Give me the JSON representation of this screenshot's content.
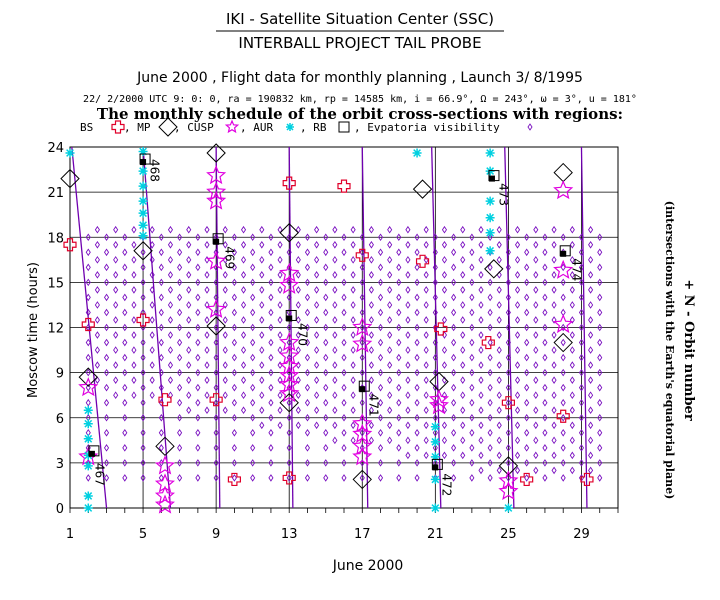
{
  "header": {
    "line1": "IKI - Satellite Situation Center (SSC)",
    "line2": "INTERBALL PROJECT TAIL PROBE",
    "line3": "June 2000 ,  Flight data for monthly planning ,   Launch  3/ 8/1995",
    "line4": "22/ 2/2000 UTC  9: 0: 0, ra = 190832 km, rp =  14585 km, i = 66.9°, Ω = 243°, ω =   3°, u = 181°",
    "line5": "The monthly schedule of the orbit cross-sections with regions:"
  },
  "legend": {
    "bs": "BS",
    "mp": ", MP",
    "cusp": ", CUSP",
    "aur": ", AUR",
    "rb": ", RB",
    "evp": ", Evpatoria visibility"
  },
  "colors": {
    "bs": "#e0002a",
    "mp": "#000000",
    "cusp": "#e000e0",
    "aur": "#00d0e0",
    "rb": "#000000",
    "evp": "#7a10c0",
    "orbit_line": "#7000b0"
  },
  "chart_data": {
    "type": "scatter",
    "xlabel": "June 2000",
    "ylabel": "Moscow time (hours)",
    "right_label_1": "+ N - Orbit number",
    "right_label_2": "(intersections with the Earth's equatorial plane)",
    "xlim": [
      1,
      31
    ],
    "ylim": [
      0,
      24
    ],
    "x_ticks": [
      1,
      5,
      9,
      13,
      17,
      21,
      25,
      29
    ],
    "y_ticks": [
      0,
      3,
      6,
      9,
      12,
      15,
      18,
      21,
      24
    ],
    "grid": true,
    "orbit_lines": [
      {
        "x0": 1.1,
        "y0": 24,
        "x1": 3.0,
        "y1": 0
      },
      {
        "x0": 5.0,
        "y0": 24,
        "x1": 6.5,
        "y1": 0
      },
      {
        "x0": 9.0,
        "y0": 24,
        "x1": 9.2,
        "y1": 0
      },
      {
        "x0": 13.0,
        "y0": 24,
        "x1": 13.2,
        "y1": 0
      },
      {
        "x0": 17.0,
        "y0": 24,
        "x1": 17.3,
        "y1": 0
      },
      {
        "x0": 20.8,
        "y0": 24,
        "x1": 21.3,
        "y1": 0
      },
      {
        "x0": 24.8,
        "y0": 24,
        "x1": 25.3,
        "y1": 0
      },
      {
        "x0": 29.0,
        "y0": 24,
        "x1": 29.3,
        "y1": 0
      }
    ],
    "orbit_numbers": [
      {
        "label": "467",
        "x": 2.4,
        "y": 3.0
      },
      {
        "label": "468",
        "x": 5.4,
        "y": 23.2
      },
      {
        "label": "469",
        "x": 9.5,
        "y": 17.4
      },
      {
        "label": "470",
        "x": 13.5,
        "y": 12.3
      },
      {
        "label": "471",
        "x": 17.4,
        "y": 7.6
      },
      {
        "label": "472",
        "x": 21.4,
        "y": 2.3
      },
      {
        "label": "473",
        "x": 24.5,
        "y": 21.6
      },
      {
        "label": "474",
        "x": 28.5,
        "y": 16.6
      }
    ],
    "orbit_points": [
      {
        "x": 2.2,
        "y": 3.6
      },
      {
        "x": 5.0,
        "y": 23.0
      },
      {
        "x": 9.0,
        "y": 17.7
      },
      {
        "x": 13.0,
        "y": 12.6
      },
      {
        "x": 17.0,
        "y": 7.9
      },
      {
        "x": 21.0,
        "y": 2.7
      },
      {
        "x": 24.1,
        "y": 21.9
      },
      {
        "x": 28.0,
        "y": 16.9
      }
    ],
    "bs": [
      {
        "x": 1.0,
        "y": 17.5
      },
      {
        "x": 2.0,
        "y": 12.2
      },
      {
        "x": 5.0,
        "y": 12.5
      },
      {
        "x": 6.2,
        "y": 7.2
      },
      {
        "x": 9.0,
        "y": 7.2
      },
      {
        "x": 10.0,
        "y": 1.9
      },
      {
        "x": 13.0,
        "y": 21.6
      },
      {
        "x": 13.0,
        "y": 2.0
      },
      {
        "x": 16.0,
        "y": 21.4
      },
      {
        "x": 17.0,
        "y": 16.8
      },
      {
        "x": 20.3,
        "y": 16.4
      },
      {
        "x": 21.3,
        "y": 11.9
      },
      {
        "x": 23.9,
        "y": 11.0
      },
      {
        "x": 25.0,
        "y": 7.0
      },
      {
        "x": 26.0,
        "y": 1.9
      },
      {
        "x": 28.0,
        "y": 6.1
      },
      {
        "x": 29.3,
        "y": 1.9
      }
    ],
    "mp": [
      {
        "x": 1.0,
        "y": 21.9
      },
      {
        "x": 2.0,
        "y": 8.7
      },
      {
        "x": 5.0,
        "y": 17.1
      },
      {
        "x": 6.2,
        "y": 4.1
      },
      {
        "x": 9.0,
        "y": 23.6
      },
      {
        "x": 9.0,
        "y": 12.1
      },
      {
        "x": 13.0,
        "y": 18.3
      },
      {
        "x": 13.0,
        "y": 7.0
      },
      {
        "x": 17.0,
        "y": 1.9
      },
      {
        "x": 20.3,
        "y": 21.2
      },
      {
        "x": 21.2,
        "y": 8.4
      },
      {
        "x": 24.2,
        "y": 15.9
      },
      {
        "x": 25.0,
        "y": 2.8
      },
      {
        "x": 28.0,
        "y": 22.3
      },
      {
        "x": 28.0,
        "y": 11.0
      }
    ],
    "cusp": [
      {
        "x": 2.0,
        "y": 8.0
      },
      {
        "x": 2.0,
        "y": 3.4
      },
      {
        "x": 6.2,
        "y": 2.8
      },
      {
        "x": 6.2,
        "y": 1.6
      },
      {
        "x": 6.2,
        "y": 0.8
      },
      {
        "x": 6.2,
        "y": 0.2
      },
      {
        "x": 9.0,
        "y": 22.1
      },
      {
        "x": 9.0,
        "y": 21.0
      },
      {
        "x": 9.0,
        "y": 20.4
      },
      {
        "x": 9.0,
        "y": 16.4
      },
      {
        "x": 9.0,
        "y": 13.2
      },
      {
        "x": 13.0,
        "y": 15.6
      },
      {
        "x": 13.0,
        "y": 14.8
      },
      {
        "x": 13.0,
        "y": 11.0
      },
      {
        "x": 13.0,
        "y": 10.1
      },
      {
        "x": 13.0,
        "y": 9.4
      },
      {
        "x": 13.0,
        "y": 8.8
      },
      {
        "x": 13.0,
        "y": 8.2
      },
      {
        "x": 13.0,
        "y": 7.6
      },
      {
        "x": 17.0,
        "y": 12.0
      },
      {
        "x": 17.0,
        "y": 10.9
      },
      {
        "x": 17.0,
        "y": 5.6
      },
      {
        "x": 17.0,
        "y": 4.9
      },
      {
        "x": 17.0,
        "y": 4.1
      },
      {
        "x": 17.0,
        "y": 3.4
      },
      {
        "x": 21.2,
        "y": 7.2
      },
      {
        "x": 21.2,
        "y": 6.8
      },
      {
        "x": 25.0,
        "y": 1.8
      },
      {
        "x": 25.0,
        "y": 1.1
      },
      {
        "x": 28.0,
        "y": 21.1
      },
      {
        "x": 28.0,
        "y": 15.8
      },
      {
        "x": 28.0,
        "y": 12.2
      }
    ],
    "aur": [
      {
        "x": 1.0,
        "y": 23.6
      },
      {
        "x": 2.0,
        "y": 6.5
      },
      {
        "x": 2.0,
        "y": 5.6
      },
      {
        "x": 2.0,
        "y": 4.6
      },
      {
        "x": 2.0,
        "y": 3.5
      },
      {
        "x": 2.0,
        "y": 2.8
      },
      {
        "x": 2.0,
        "y": 0.8
      },
      {
        "x": 2.0,
        "y": 0.0
      },
      {
        "x": 5.0,
        "y": 23.7
      },
      {
        "x": 5.0,
        "y": 22.4
      },
      {
        "x": 5.0,
        "y": 21.4
      },
      {
        "x": 5.0,
        "y": 20.4
      },
      {
        "x": 5.0,
        "y": 19.6
      },
      {
        "x": 5.0,
        "y": 18.8
      },
      {
        "x": 5.0,
        "y": 18.1
      },
      {
        "x": 20.0,
        "y": 23.6
      },
      {
        "x": 21.0,
        "y": 5.4
      },
      {
        "x": 21.0,
        "y": 4.4
      },
      {
        "x": 21.0,
        "y": 3.4
      },
      {
        "x": 21.0,
        "y": 1.9
      },
      {
        "x": 21.0,
        "y": 0.0
      },
      {
        "x": 24.0,
        "y": 23.6
      },
      {
        "x": 24.0,
        "y": 22.4
      },
      {
        "x": 24.0,
        "y": 20.4
      },
      {
        "x": 24.0,
        "y": 19.3
      },
      {
        "x": 24.0,
        "y": 18.3
      },
      {
        "x": 24.0,
        "y": 17.1
      },
      {
        "x": 25.0,
        "y": 0.0
      }
    ],
    "evp": {
      "x_start": 2,
      "x_end": 30,
      "y_min": 2.0,
      "y_max": 18.0,
      "y_step": 1.0,
      "center_hour": 16.0,
      "hour_shift_per_day": -0.25,
      "half_width_days": 5
    }
  }
}
